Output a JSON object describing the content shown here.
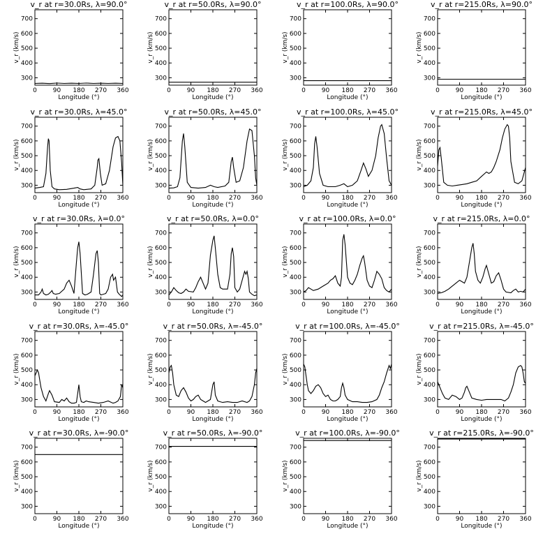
{
  "chart_data": [
    {
      "type": "line",
      "title": "v_r at r=30.0Rs, λ=90.0°",
      "xlabel": "Longitude (°)",
      "ylabel": "v_r (km/s)",
      "xlim": [
        0,
        360
      ],
      "ylim": [
        250,
        760
      ],
      "x": [
        0,
        30,
        60,
        90,
        120,
        150,
        180,
        210,
        240,
        270,
        300,
        330,
        360
      ],
      "values": [
        262,
        263,
        261,
        264,
        262,
        263,
        262,
        264,
        262,
        263,
        262,
        263,
        262
      ]
    },
    {
      "type": "line",
      "title": "v_r at r=50.0Rs, λ=90.0°",
      "xlabel": "Longitude (°)",
      "ylabel": "v_r (km/s)",
      "xlim": [
        0,
        360
      ],
      "ylim": [
        250,
        760
      ],
      "x": [
        0,
        360
      ],
      "values": [
        270,
        270
      ]
    },
    {
      "type": "line",
      "title": "v_r at r=100.0Rs, λ=90.0°",
      "xlabel": "Longitude (°)",
      "ylabel": "v_r (km/s)",
      "xlim": [
        0,
        360
      ],
      "ylim": [
        250,
        760
      ],
      "x": [
        0,
        360
      ],
      "values": [
        280,
        280
      ]
    },
    {
      "type": "line",
      "title": "v_r at r=215.0Rs, λ=90.0°",
      "xlabel": "Longitude (°)",
      "ylabel": "v_r (km/s)",
      "xlim": [
        0,
        360
      ],
      "ylim": [
        250,
        760
      ],
      "x": [
        0,
        360
      ],
      "values": [
        290,
        290
      ]
    },
    {
      "type": "line",
      "title": "v_r at r=30.0Rs, λ=45.0°",
      "xlabel": "Longitude (°)",
      "ylabel": "v_r (km/s)",
      "xlim": [
        0,
        360
      ],
      "ylim": [
        250,
        760
      ],
      "x": [
        0,
        20,
        35,
        45,
        52,
        55,
        58,
        63,
        70,
        80,
        100,
        130,
        160,
        175,
        185,
        200,
        230,
        245,
        255,
        258,
        262,
        268,
        275,
        290,
        305,
        320,
        330,
        340,
        348,
        355,
        360
      ],
      "values": [
        280,
        285,
        290,
        380,
        560,
        615,
        600,
        400,
        290,
        275,
        270,
        272,
        280,
        285,
        275,
        270,
        275,
        300,
        420,
        470,
        480,
        380,
        300,
        310,
        400,
        560,
        620,
        630,
        600,
        450,
        300
      ]
    },
    {
      "type": "line",
      "title": "v_r at r=50.0Rs, λ=45.0°",
      "xlabel": "Longitude (°)",
      "ylabel": "v_r (km/s)",
      "xlim": [
        0,
        360
      ],
      "ylim": [
        250,
        760
      ],
      "x": [
        0,
        20,
        35,
        45,
        55,
        60,
        65,
        75,
        90,
        120,
        150,
        170,
        185,
        200,
        230,
        245,
        255,
        260,
        265,
        275,
        290,
        305,
        320,
        330,
        340,
        350,
        355,
        360
      ],
      "values": [
        280,
        282,
        290,
        350,
        600,
        650,
        560,
        320,
        285,
        280,
        285,
        300,
        290,
        285,
        295,
        320,
        460,
        490,
        420,
        320,
        330,
        420,
        600,
        680,
        670,
        500,
        350,
        300
      ]
    },
    {
      "type": "line",
      "title": "v_r at r=100.0Rs, λ=45.0°",
      "xlabel": "Longitude (°)",
      "ylabel": "v_r (km/s)",
      "xlim": [
        0,
        360
      ],
      "ylim": [
        250,
        760
      ],
      "x": [
        0,
        15,
        30,
        40,
        45,
        50,
        55,
        65,
        80,
        100,
        130,
        150,
        165,
        180,
        200,
        220,
        235,
        245,
        255,
        265,
        280,
        295,
        305,
        315,
        320,
        330,
        340,
        350,
        360
      ],
      "values": [
        290,
        300,
        330,
        420,
        580,
        630,
        560,
        380,
        300,
        290,
        290,
        300,
        310,
        290,
        300,
        330,
        400,
        450,
        410,
        360,
        400,
        500,
        620,
        700,
        710,
        650,
        480,
        330,
        300
      ]
    },
    {
      "type": "line",
      "title": "v_r at r=215.0Rs, λ=45.0°",
      "xlabel": "Longitude (°)",
      "ylabel": "v_r (km/s)",
      "xlim": [
        0,
        360
      ],
      "ylim": [
        250,
        760
      ],
      "x": [
        0,
        5,
        10,
        15,
        25,
        40,
        60,
        80,
        100,
        120,
        140,
        160,
        180,
        200,
        210,
        220,
        230,
        240,
        255,
        265,
        275,
        285,
        290,
        295,
        300,
        315,
        330,
        345,
        360
      ],
      "values": [
        430,
        540,
        555,
        480,
        320,
        300,
        295,
        300,
        305,
        310,
        320,
        330,
        360,
        390,
        380,
        390,
        420,
        460,
        540,
        620,
        680,
        710,
        700,
        620,
        460,
        320,
        310,
        330,
        420
      ]
    },
    {
      "type": "line",
      "title": "v_r at r=30.0Rs, λ=0.0°",
      "xlabel": "Longitude (°)",
      "ylabel": "v_r (km/s)",
      "xlim": [
        0,
        360
      ],
      "ylim": [
        250,
        760
      ],
      "x": [
        0,
        15,
        25,
        30,
        35,
        45,
        55,
        65,
        70,
        75,
        85,
        100,
        120,
        130,
        140,
        150,
        160,
        170,
        175,
        180,
        185,
        195,
        205,
        215,
        230,
        240,
        250,
        255,
        260,
        265,
        270,
        280,
        290,
        300,
        310,
        318,
        322,
        330,
        338,
        345,
        355,
        360
      ],
      "values": [
        280,
        280,
        300,
        320,
        290,
        280,
        285,
        300,
        310,
        290,
        285,
        290,
        320,
        360,
        380,
        340,
        290,
        500,
        600,
        640,
        560,
        290,
        280,
        285,
        300,
        420,
        560,
        580,
        500,
        290,
        280,
        285,
        290,
        320,
        400,
        420,
        380,
        400,
        300,
        285,
        270,
        280
      ]
    },
    {
      "type": "line",
      "title": "v_r at r=50.0Rs, λ=0.0°",
      "xlabel": "Longitude (°)",
      "ylabel": "v_r (km/s)",
      "xlim": [
        0,
        360
      ],
      "ylim": [
        250,
        760
      ],
      "x": [
        0,
        10,
        20,
        30,
        40,
        50,
        60,
        70,
        80,
        100,
        110,
        120,
        130,
        140,
        150,
        160,
        170,
        180,
        185,
        190,
        200,
        210,
        220,
        240,
        250,
        255,
        260,
        265,
        270,
        280,
        290,
        300,
        310,
        315,
        320,
        325,
        330,
        340,
        350,
        360
      ],
      "values": [
        280,
        300,
        330,
        310,
        295,
        290,
        300,
        320,
        305,
        300,
        330,
        370,
        400,
        360,
        320,
        360,
        550,
        650,
        680,
        600,
        420,
        330,
        320,
        320,
        420,
        560,
        600,
        540,
        330,
        300,
        320,
        380,
        440,
        420,
        440,
        390,
        300,
        285,
        275,
        280
      ]
    },
    {
      "type": "line",
      "title": "v_r at r=100.0Rs, λ=0.0°",
      "xlabel": "Longitude (°)",
      "ylabel": "v_r (km/s)",
      "xlim": [
        0,
        360
      ],
      "ylim": [
        250,
        760
      ],
      "x": [
        0,
        10,
        20,
        30,
        40,
        60,
        80,
        100,
        110,
        120,
        130,
        140,
        150,
        155,
        160,
        165,
        170,
        180,
        190,
        200,
        210,
        220,
        230,
        240,
        245,
        250,
        260,
        270,
        280,
        290,
        300,
        310,
        320,
        330,
        340,
        350,
        360
      ],
      "values": [
        300,
        310,
        330,
        320,
        310,
        320,
        340,
        360,
        380,
        390,
        410,
        360,
        340,
        400,
        650,
        690,
        620,
        400,
        360,
        350,
        380,
        420,
        480,
        530,
        545,
        500,
        380,
        340,
        330,
        380,
        440,
        420,
        390,
        330,
        310,
        300,
        320
      ]
    },
    {
      "type": "line",
      "title": "v_r at r=215.0Rs, λ=0.0°",
      "xlabel": "Longitude (°)",
      "ylabel": "v_r (km/s)",
      "xlim": [
        0,
        360
      ],
      "ylim": [
        250,
        760
      ],
      "x": [
        0,
        15,
        30,
        45,
        60,
        75,
        90,
        100,
        110,
        120,
        130,
        140,
        145,
        150,
        155,
        165,
        175,
        185,
        195,
        200,
        210,
        220,
        230,
        240,
        250,
        260,
        270,
        280,
        300,
        310,
        320,
        330,
        340,
        350,
        360
      ],
      "values": [
        290,
        295,
        305,
        320,
        340,
        360,
        380,
        370,
        360,
        400,
        500,
        600,
        630,
        560,
        440,
        380,
        360,
        400,
        460,
        480,
        420,
        360,
        370,
        410,
        430,
        380,
        320,
        300,
        295,
        310,
        320,
        300,
        305,
        300,
        320
      ]
    },
    {
      "type": "line",
      "title": "v_r at r=30.0Rs, λ=-45.0°",
      "xlabel": "Longitude (°)",
      "ylabel": "v_r (km/s)",
      "xlim": [
        0,
        360
      ],
      "ylim": [
        250,
        760
      ],
      "x": [
        0,
        5,
        10,
        15,
        20,
        25,
        35,
        45,
        55,
        60,
        70,
        80,
        100,
        110,
        120,
        130,
        140,
        150,
        160,
        170,
        175,
        180,
        185,
        190,
        200,
        210,
        220,
        240,
        260,
        280,
        300,
        320,
        330,
        340,
        350,
        355,
        360
      ],
      "values": [
        460,
        480,
        500,
        480,
        430,
        380,
        320,
        290,
        340,
        360,
        330,
        285,
        280,
        300,
        290,
        310,
        285,
        275,
        275,
        280,
        340,
        400,
        320,
        285,
        280,
        290,
        285,
        280,
        275,
        280,
        290,
        275,
        280,
        290,
        320,
        400,
        380
      ]
    },
    {
      "type": "line",
      "title": "v_r at r=50.0Rs, λ=-45.0°",
      "xlabel": "Longitude (°)",
      "ylabel": "v_r (km/s)",
      "xlim": [
        0,
        360
      ],
      "ylim": [
        250,
        760
      ],
      "x": [
        0,
        5,
        10,
        15,
        20,
        30,
        40,
        50,
        60,
        70,
        80,
        90,
        100,
        110,
        120,
        130,
        140,
        150,
        160,
        170,
        180,
        185,
        190,
        200,
        210,
        220,
        240,
        260,
        280,
        300,
        320,
        330,
        340,
        350,
        355,
        360
      ],
      "values": [
        480,
        520,
        530,
        480,
        400,
        330,
        320,
        360,
        380,
        350,
        310,
        290,
        300,
        320,
        330,
        300,
        290,
        280,
        290,
        300,
        400,
        420,
        330,
        290,
        285,
        280,
        285,
        280,
        280,
        290,
        280,
        290,
        320,
        400,
        480,
        510
      ]
    },
    {
      "type": "line",
      "title": "v_r at r=100.0Rs, λ=-45.0°",
      "xlabel": "Longitude (°)",
      "ylabel": "v_r (km/s)",
      "xlim": [
        0,
        360
      ],
      "ylim": [
        250,
        760
      ],
      "x": [
        0,
        5,
        10,
        15,
        20,
        30,
        40,
        50,
        60,
        70,
        80,
        90,
        100,
        110,
        120,
        130,
        140,
        150,
        155,
        160,
        165,
        170,
        180,
        200,
        220,
        240,
        260,
        280,
        300,
        310,
        320,
        330,
        340,
        350,
        355,
        360
      ],
      "values": [
        540,
        520,
        460,
        400,
        360,
        340,
        360,
        390,
        400,
        380,
        340,
        320,
        330,
        300,
        290,
        290,
        300,
        320,
        380,
        410,
        380,
        330,
        300,
        285,
        285,
        280,
        280,
        285,
        300,
        330,
        380,
        420,
        480,
        530,
        510,
        540
      ]
    },
    {
      "type": "line",
      "title": "v_r at r=215.0Rs, λ=-45.0°",
      "xlabel": "Longitude (°)",
      "ylabel": "v_r (km/s)",
      "xlim": [
        0,
        360
      ],
      "ylim": [
        250,
        760
      ],
      "x": [
        0,
        10,
        20,
        30,
        45,
        60,
        75,
        90,
        100,
        110,
        115,
        120,
        130,
        140,
        160,
        180,
        200,
        220,
        240,
        260,
        275,
        290,
        300,
        310,
        320,
        330,
        340,
        345,
        350,
        355,
        360
      ],
      "values": [
        420,
        380,
        340,
        310,
        300,
        330,
        320,
        300,
        310,
        350,
        380,
        390,
        350,
        310,
        300,
        295,
        300,
        300,
        300,
        300,
        290,
        310,
        350,
        400,
        480,
        520,
        530,
        520,
        480,
        420,
        410
      ]
    },
    {
      "type": "line",
      "title": "v_r at r=30.0Rs, λ=-90.0°",
      "xlabel": "Longitude (°)",
      "ylabel": "v_r (km/s)",
      "xlim": [
        0,
        360
      ],
      "ylim": [
        250,
        760
      ],
      "x": [
        0,
        360
      ],
      "values": [
        650,
        650
      ]
    },
    {
      "type": "line",
      "title": "v_r at r=50.0Rs, λ=-90.0°",
      "xlabel": "Longitude (°)",
      "ylabel": "v_r (km/s)",
      "xlim": [
        0,
        360
      ],
      "ylim": [
        250,
        760
      ],
      "x": [
        0,
        360
      ],
      "values": [
        705,
        705
      ]
    },
    {
      "type": "line",
      "title": "v_r at r=100.0Rs, λ=-90.0°",
      "xlabel": "Longitude (°)",
      "ylabel": "v_r (km/s)",
      "xlim": [
        0,
        360
      ],
      "ylim": [
        250,
        760
      ],
      "x": [
        0,
        360
      ],
      "values": [
        745,
        745
      ]
    },
    {
      "type": "line",
      "title": "v_r at r=215.0Rs, λ=-90.0°",
      "xlabel": "Longitude (°)",
      "ylabel": "v_r (km/s)",
      "xlim": [
        0,
        360
      ],
      "ylim": [
        250,
        760
      ],
      "x": [
        0,
        360
      ],
      "values": [
        755,
        755
      ]
    }
  ],
  "axes": {
    "xticks": [
      0,
      90,
      180,
      270,
      360
    ],
    "yticks": [
      300,
      400,
      500,
      600,
      700
    ],
    "line_color": "#000000"
  }
}
